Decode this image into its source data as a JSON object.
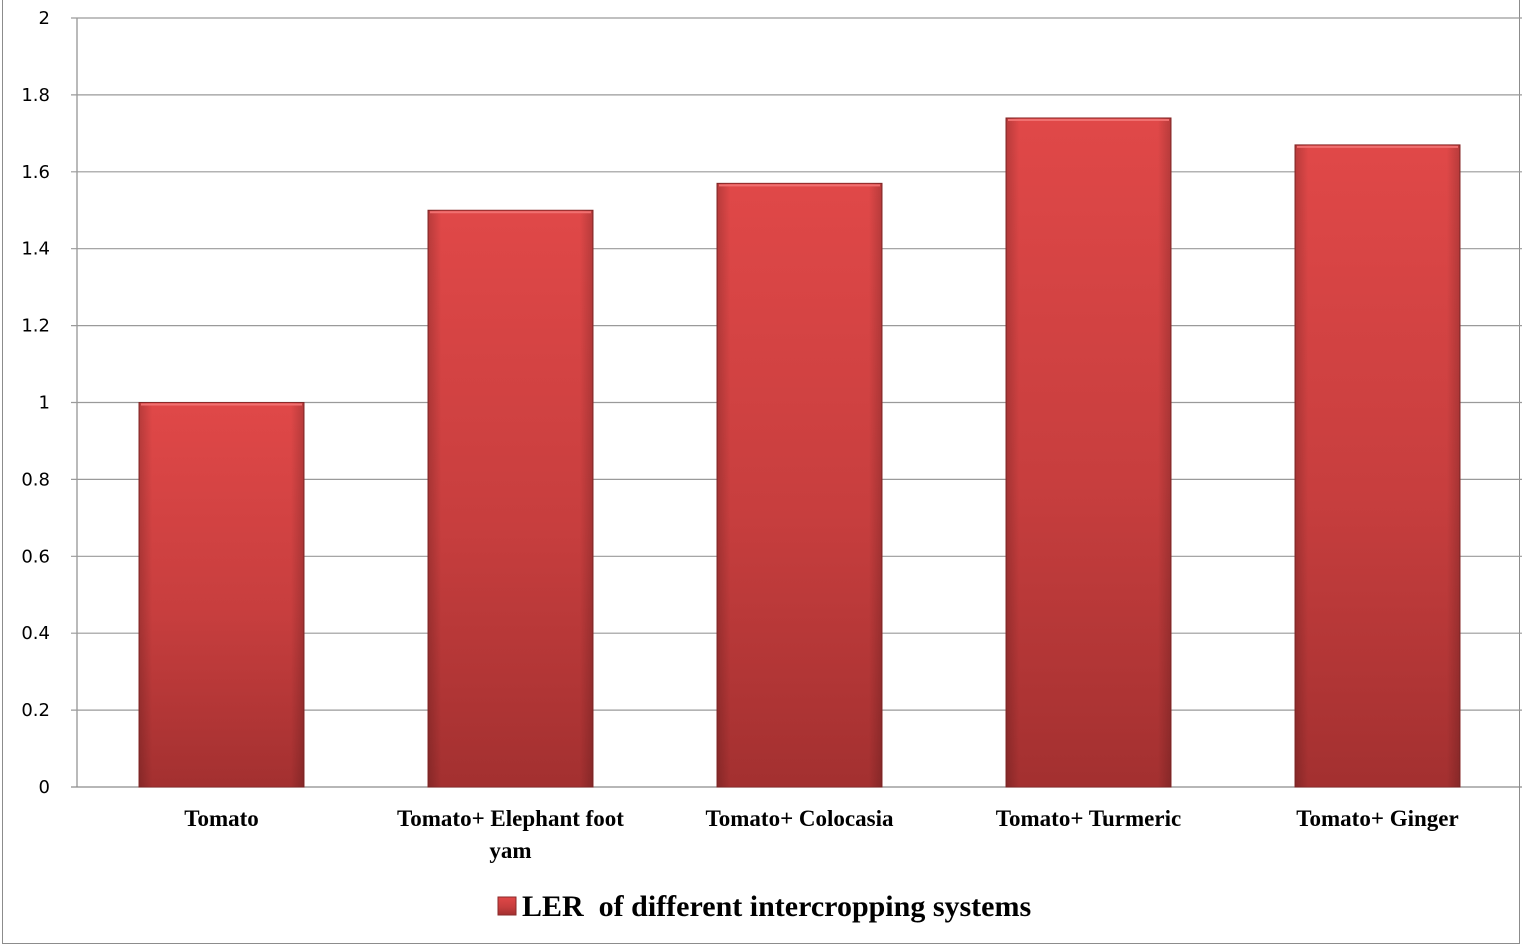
{
  "chart_data": {
    "type": "bar",
    "categories": [
      [
        "Tomato"
      ],
      [
        "Tomato+ Elephant foot",
        "yam"
      ],
      [
        "Tomato+ Colocasia"
      ],
      [
        "Tomato+ Turmeric"
      ],
      [
        "Tomato+ Ginger"
      ]
    ],
    "series": [
      {
        "name": "LER  of different intercropping systems",
        "values": [
          1.0,
          1.5,
          1.57,
          1.74,
          1.67
        ],
        "color": "#c43a3a"
      }
    ],
    "ylim": [
      0,
      2
    ],
    "yticks": [
      "0",
      "0.2",
      "0.4",
      "0.6",
      "0.8",
      "1",
      "1.2",
      "1.4",
      "1.6",
      "1.8",
      "2"
    ],
    "grid": true,
    "legend_position": "bottom"
  }
}
